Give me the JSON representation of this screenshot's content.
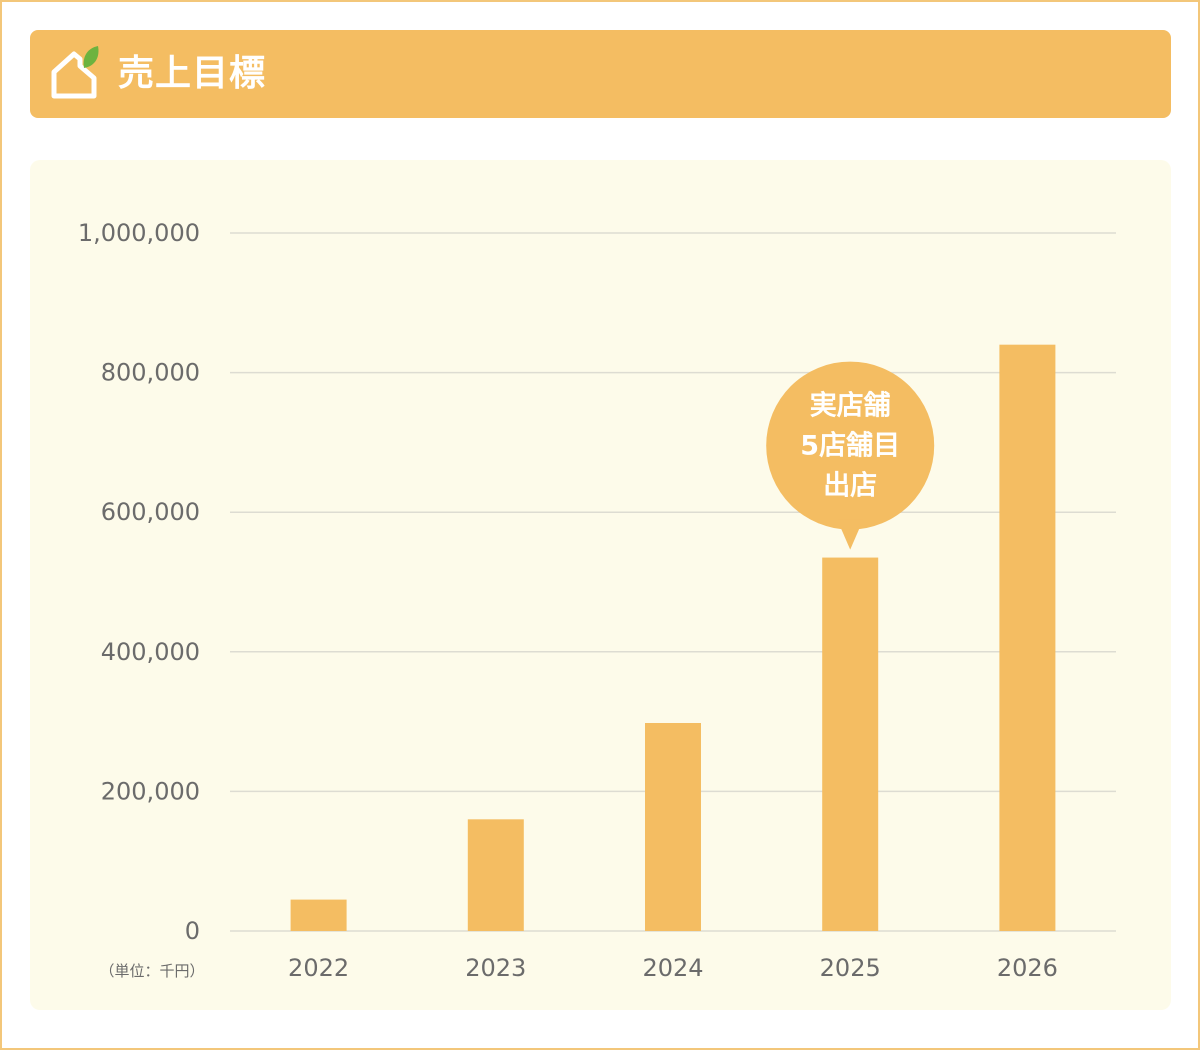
{
  "header": {
    "title": "売上目標",
    "icon": "house-leaf-icon"
  },
  "colors": {
    "header_bg": "#f4bd62",
    "bar": "#f4bd62",
    "panel_bg": "#fdfbea",
    "frame": "#f3c77a",
    "leaf": "#6db33f",
    "grid": "#dddcd2",
    "text": "#6b6b6b"
  },
  "chart_data": {
    "type": "bar",
    "title": "",
    "xlabel": "",
    "ylabel": "",
    "unit_label": "（単位：千円）",
    "categories": [
      "2022",
      "2023",
      "2024",
      "2025",
      "2026"
    ],
    "values": [
      45000,
      160000,
      298000,
      535000,
      840000
    ],
    "ylim": [
      0,
      1000000
    ],
    "yticks": [
      0,
      200000,
      400000,
      600000,
      800000,
      1000000
    ],
    "ytick_labels": [
      "0",
      "200,000",
      "400,000",
      "600,000",
      "800,000",
      "1,000,000"
    ],
    "grid": true,
    "annotation": {
      "category": "2025",
      "lines": [
        "実店舗",
        "5店舗目",
        "出店"
      ]
    }
  }
}
